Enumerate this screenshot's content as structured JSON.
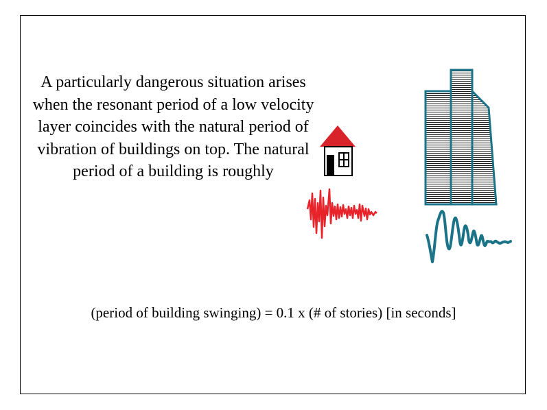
{
  "paragraph": {
    "text": "A particularly dangerous situation arises when the resonant period of a low velocity layer coincides with the natural period of vibration of buildings on top. The natural period of a building is roughly"
  },
  "formula": {
    "text": "(period of building swinging) = 0.1 x (# of stories) [in seconds]"
  },
  "colors": {
    "house_roof": "#d8232a",
    "small_wave": "#e8232a",
    "tower": "#1a7387",
    "large_wave": "#1a7387"
  },
  "icons": {
    "house": "house-icon",
    "tower": "tall-building-icon"
  }
}
